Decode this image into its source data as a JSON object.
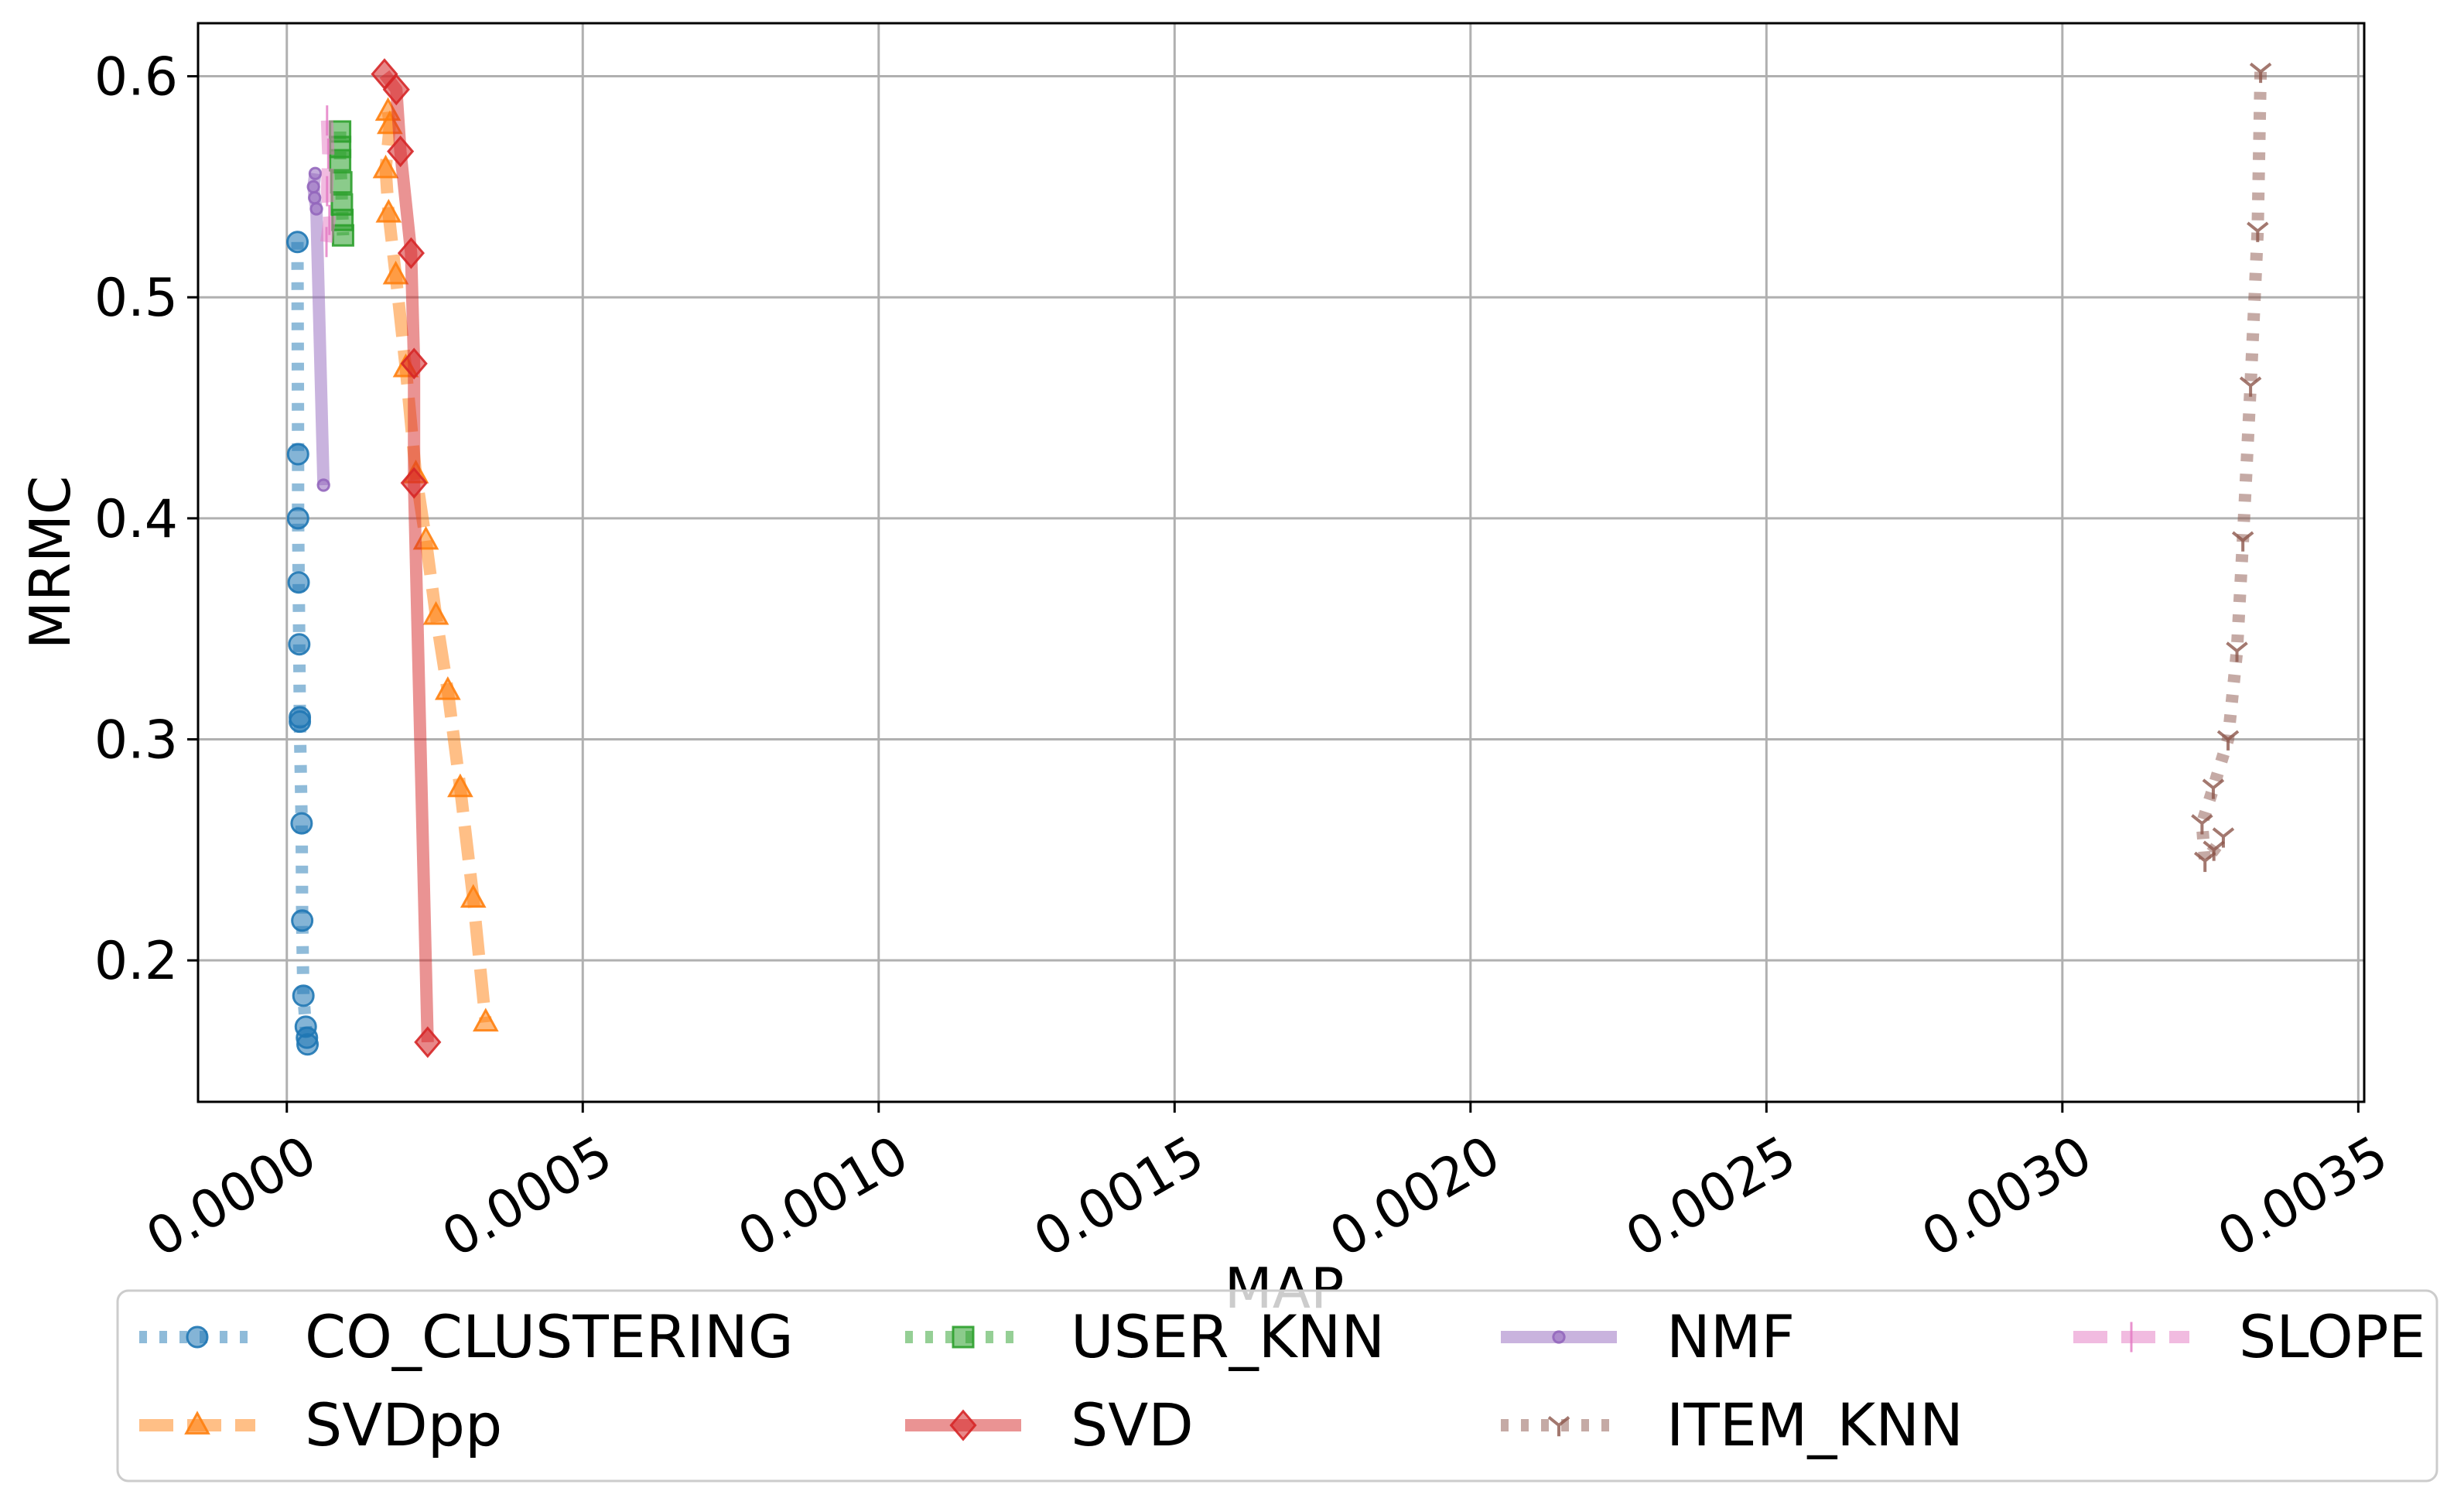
{
  "chart_data": {
    "type": "line",
    "title": "",
    "xlabel": "MAP",
    "ylabel": "MRMC",
    "xlim": [
      -0.00015,
      0.00351
    ],
    "ylim": [
      0.136,
      0.624
    ],
    "xticks": [
      0.0,
      0.0005,
      0.001,
      0.0015,
      0.002,
      0.0025,
      0.003,
      0.0035
    ],
    "xtick_labels": [
      "0.0000",
      "0.0005",
      "0.0010",
      "0.0015",
      "0.0020",
      "0.0025",
      "0.0030",
      "0.0035"
    ],
    "yticks": [
      0.2,
      0.3,
      0.4,
      0.5,
      0.6
    ],
    "ytick_labels": [
      "0.2",
      "0.3",
      "0.4",
      "0.5",
      "0.6"
    ],
    "grid": true,
    "legend_position": "below plot, 4 columns",
    "series": [
      {
        "name": "CO_CLUSTERING",
        "color": "#1f77b4",
        "linestyle": "dotted",
        "marker": "circle",
        "x": [
          1.8e-05,
          1.9e-05,
          1.9e-05,
          2e-05,
          2.1e-05,
          2.2e-05,
          2.2e-05,
          2.5e-05,
          2.6e-05,
          2.8e-05,
          3.2e-05,
          3.4e-05,
          3.5e-05
        ],
        "y": [
          0.525,
          0.429,
          0.4,
          0.371,
          0.343,
          0.31,
          0.308,
          0.262,
          0.218,
          0.184,
          0.17,
          0.165,
          0.162
        ]
      },
      {
        "name": "SVDpp",
        "color": "#ff7f0e",
        "linestyle": "dashed",
        "marker": "triangle",
        "x": [
          0.000171,
          0.000174,
          0.000167,
          0.000172,
          0.000184,
          0.000201,
          0.000218,
          0.000235,
          0.000252,
          0.000272,
          0.000293,
          0.000315,
          0.000336
        ],
        "y": [
          0.584,
          0.578,
          0.558,
          0.538,
          0.51,
          0.468,
          0.42,
          0.39,
          0.356,
          0.322,
          0.278,
          0.228,
          0.172
        ]
      },
      {
        "name": "USER_KNN",
        "color": "#2ca02c",
        "linestyle": "dotted",
        "marker": "square",
        "x": [
          9e-05,
          9e-05,
          9e-05,
          9.2e-05,
          9.3e-05,
          9.4e-05,
          9.5e-05
        ],
        "y": [
          0.575,
          0.568,
          0.562,
          0.552,
          0.542,
          0.535,
          0.528
        ]
      },
      {
        "name": "SVD",
        "color": "#d62728",
        "linestyle": "solid",
        "marker": "diamond",
        "x": [
          0.000165,
          0.000185,
          0.000192,
          0.00021,
          0.000215,
          0.000215,
          0.000238
        ],
        "y": [
          0.601,
          0.594,
          0.566,
          0.52,
          0.47,
          0.416,
          0.163
        ]
      },
      {
        "name": "NMF",
        "color": "#9467bd",
        "linestyle": "solid",
        "marker": "dot",
        "x": [
          4.8e-05,
          4.5e-05,
          4.7e-05,
          5e-05,
          6.2e-05
        ],
        "y": [
          0.556,
          0.55,
          0.545,
          0.54,
          0.415
        ]
      },
      {
        "name": "ITEM_KNN",
        "color": "#8c564b",
        "linestyle": "dotted",
        "marker": "tri_down",
        "x": [
          0.003335,
          0.00333,
          0.003318,
          0.003305,
          0.003295,
          0.00328,
          0.003255,
          0.003236,
          0.003241,
          0.003256,
          0.003272
        ],
        "y": [
          0.602,
          0.53,
          0.46,
          0.39,
          0.34,
          0.3,
          0.278,
          0.262,
          0.245,
          0.25,
          0.256
        ]
      },
      {
        "name": "SLOPE",
        "color": "#e377c2",
        "linestyle": "dashed",
        "marker": "vline",
        "x": [
          6.8e-05,
          7e-05,
          6.8e-05,
          7.2e-05,
          6.7e-05
        ],
        "y": [
          0.58,
          0.565,
          0.548,
          0.535,
          0.525
        ]
      }
    ]
  }
}
